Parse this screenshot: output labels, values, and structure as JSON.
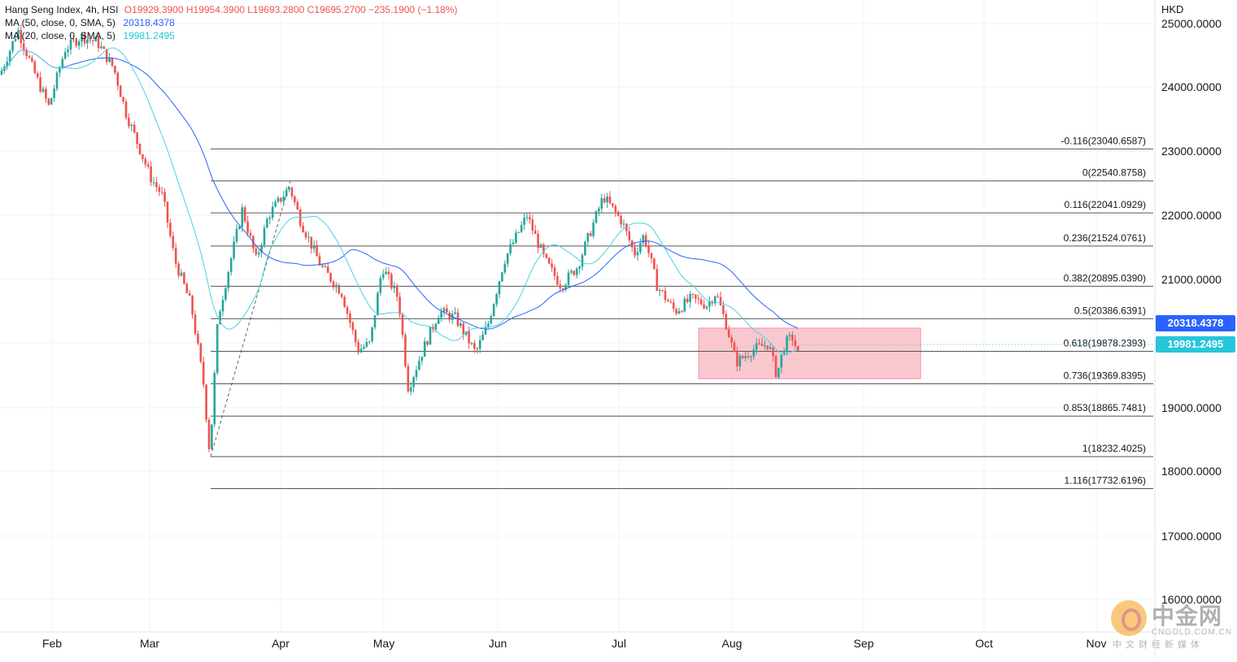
{
  "legend": {
    "symbol": "Hang Seng Index, 4h, HSI",
    "ohlc": "O19929.3900  H19954.3900  L19693.2800  C19695.2700  −235.1900 (−1.18%)",
    "ma50_label": "MA (50, close, 0, SMA, 5)",
    "ma50_value": "20318.4378",
    "ma20_label": "MA (20, close, 0, SMA, 5)",
    "ma20_value": "19981.2495"
  },
  "currency": "HKD",
  "colors": {
    "up": "#26a69a",
    "down": "#ef5350",
    "ma50": "#2962ff",
    "ma20": "#4dd0e1",
    "fib_line": "#555555",
    "zone_fill": "#f7b6bd",
    "grid": "#f0f3fa"
  },
  "price_badges": [
    {
      "value": "20318.4378",
      "color": "#2962ff",
      "price": 20318.4378
    },
    {
      "value": "19981.2495",
      "color": "#26c6da",
      "price": 19981.2495
    }
  ],
  "watermark": {
    "title": "中金网",
    "domain": "CNGOLD.COM.CN",
    "sub": "中文财经新媒体"
  },
  "chart_data": {
    "type": "candlestick",
    "title": "Hang Seng Index, 4h, HSI",
    "x_tick_labels": [
      "Feb",
      "Mar",
      "Apr",
      "May",
      "Jun",
      "Jul",
      "Aug",
      "Sep",
      "Oct",
      "Nov"
    ],
    "y_tick_labels": [
      "25000.0000",
      "24000.0000",
      "23000.0000",
      "22000.0000",
      "21000.0000",
      "20000.0000",
      "19000.0000",
      "18000.0000",
      "17000.0000",
      "16000.0000"
    ],
    "y_ticks": [
      25000,
      24000,
      23000,
      22000,
      21000,
      20000,
      19000,
      18000,
      17000,
      16000
    ],
    "ylim": [
      15330,
      25120
    ],
    "grid": true,
    "fibonacci": [
      {
        "label": "-0.116(23040.6587)",
        "price": 23040.6587
      },
      {
        "label": "0(22540.8758)",
        "price": 22540.8758
      },
      {
        "label": "0.116(22041.0929)",
        "price": 22041.0929
      },
      {
        "label": "0.236(21524.0761)",
        "price": 21524.0761
      },
      {
        "label": "0.382(20895.0390)",
        "price": 20895.039
      },
      {
        "label": "0.5(20386.6391)",
        "price": 20386.6391
      },
      {
        "label": "0.618(19878.2393)",
        "price": 19878.2393
      },
      {
        "label": "0.736(19369.8395)",
        "price": 19369.8395
      },
      {
        "label": "0.853(18865.7481)",
        "price": 18865.7481
      },
      {
        "label": "1(18232.4025)",
        "price": 18232.4025
      },
      {
        "label": "1.116(17732.6196)",
        "price": 17732.6196
      }
    ],
    "fib_start_label_index": 1,
    "ma_current": {
      "ma50": 20318.4378,
      "ma20": 19981.2495
    },
    "last_close": 19695.27,
    "consolidation_zone": {
      "price_top": 20240,
      "price_bottom": 19450
    },
    "anchor_swing": {
      "low": 18232.4025,
      "high": 22540.8758
    }
  }
}
